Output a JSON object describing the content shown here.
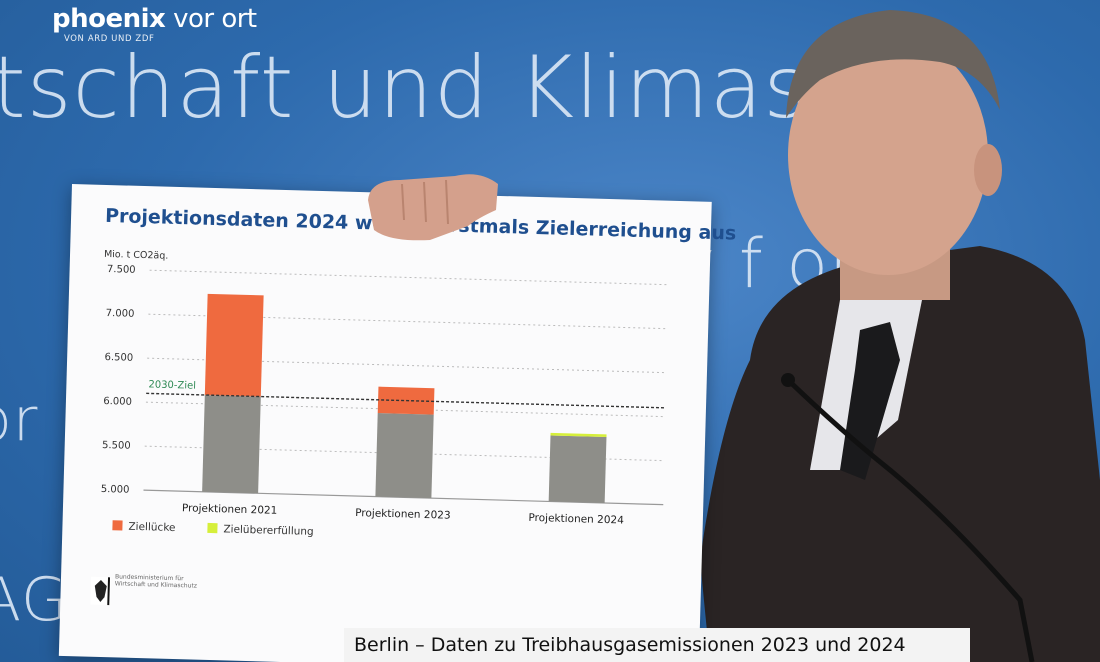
{
  "background": {
    "wall_text": [
      "tschaft und Klimasc   z",
      "y f   or",
      "or",
      "AG"
    ],
    "wall_color": "#2f6db0"
  },
  "broadcaster": {
    "logo_bold": "phoenix",
    "logo_light": " vor ort",
    "logo_sub": "VON ARD UND ZDF"
  },
  "poster": {
    "title": "Projektionsdaten 2024 weisen erstmals Zielerreichung aus",
    "ministry_text": "Bundesministerium für Wirtschaft und Klimaschutz"
  },
  "chart_data": {
    "type": "bar",
    "title": "Projektionsdaten 2024 weisen erstmals Zielerreichung aus",
    "ylabel": "Mio. t CO2äq.",
    "ylim": [
      5000,
      7500
    ],
    "yticks": [
      5000,
      5500,
      6000,
      6500,
      7000,
      7500
    ],
    "ytick_labels": [
      "5.000",
      "5.500",
      "6.000",
      "6.500",
      "7.000",
      "7.500"
    ],
    "categories": [
      "Projektionen 2021",
      "Projektionen 2023",
      "Projektionen 2024"
    ],
    "goal": {
      "label": "2030-Ziel",
      "value": 6100
    },
    "series": [
      {
        "name": "base",
        "values": [
          6100,
          5950,
          5750
        ],
        "color": "#8e8e89"
      },
      {
        "name": "Ziellücke",
        "values": [
          1150,
          300,
          0
        ],
        "color": "#ef6a3f"
      },
      {
        "name": "Zielübererfüllung",
        "values": [
          0,
          0,
          30
        ],
        "color": "#d6ef3b"
      }
    ],
    "legend": [
      "Ziellücke",
      "Zielübererfüllung"
    ],
    "legend_position": "bottom-left",
    "grid": "dotted horizontal"
  },
  "caption": {
    "text": "Berlin – Daten zu Treibhausgasemissionen 2023 und 2024"
  }
}
